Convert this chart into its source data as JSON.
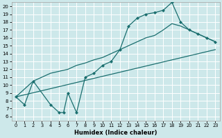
{
  "xlabel": "Humidex (Indice chaleur)",
  "xlim": [
    0,
    23
  ],
  "ylim": [
    6,
    20
  ],
  "yticks": [
    6,
    7,
    8,
    9,
    10,
    11,
    12,
    13,
    14,
    15,
    16,
    17,
    18,
    19,
    20
  ],
  "xticks": [
    0,
    1,
    2,
    3,
    4,
    5,
    6,
    7,
    8,
    9,
    10,
    11,
    12,
    13,
    14,
    15,
    16,
    17,
    18,
    19,
    20,
    21,
    22,
    23
  ],
  "bg_color": "#cde8ea",
  "line_color": "#1a6e6e",
  "grid_color": "#ffffff",
  "line1_x": [
    0,
    1,
    2,
    4,
    5,
    5.5,
    6,
    7,
    8,
    9,
    10,
    11,
    12,
    13,
    14,
    15,
    16,
    17,
    18,
    19,
    20,
    21,
    22,
    23
  ],
  "line1_y": [
    8.5,
    7.5,
    10.5,
    7.5,
    6.5,
    6.5,
    9.0,
    6.5,
    11.0,
    11.5,
    12.5,
    13.0,
    14.5,
    17.5,
    18.5,
    19.0,
    19.2,
    19.5,
    20.5,
    18.0,
    17.0,
    16.5,
    16.0,
    15.5
  ],
  "line2_x": [
    0,
    2,
    4,
    6,
    7,
    8,
    9,
    10,
    11,
    12,
    13,
    14,
    15,
    16,
    17,
    18,
    19,
    20,
    21,
    22,
    23
  ],
  "line2_y": [
    8.5,
    10.5,
    11.5,
    12.0,
    12.5,
    12.8,
    13.2,
    13.5,
    14.0,
    14.5,
    15.0,
    15.5,
    16.0,
    16.3,
    17.0,
    17.8,
    17.5,
    17.0,
    16.5,
    16.0,
    15.5
  ],
  "line3_x": [
    0,
    23
  ],
  "line3_y": [
    8.5,
    14.5
  ]
}
